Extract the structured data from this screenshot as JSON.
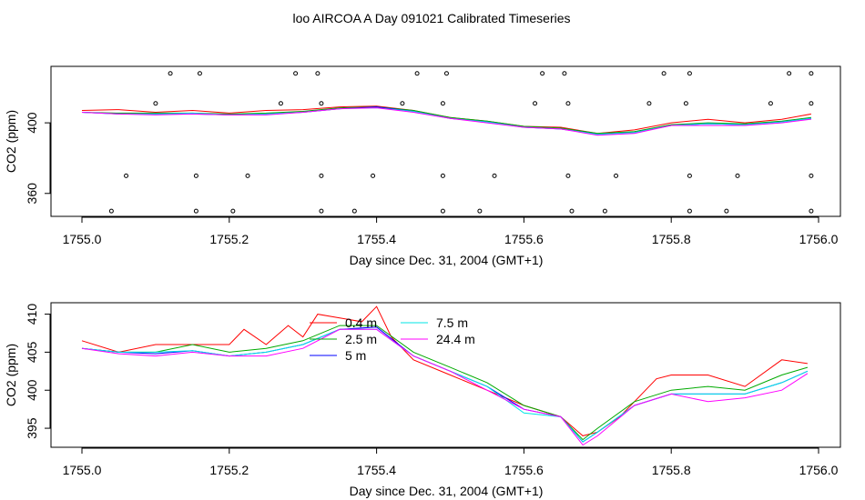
{
  "figure": {
    "title": "loo AIRCOA A  Day 091021  Calibrated Timeseries"
  },
  "chart_data": [
    {
      "type": "line",
      "xlabel": "Day since Dec. 31, 2004 (GMT+1)",
      "ylabel": "CO2 (ppm)",
      "xlim": [
        1755.0,
        1756.0
      ],
      "ylim": [
        347,
        432
      ],
      "x_ticks": [
        1755.0,
        1755.2,
        1755.4,
        1755.6,
        1755.8,
        1756.0
      ],
      "x_tick_labels": [
        "1755.0",
        "1755.2",
        "1755.4",
        "1755.6",
        "1755.8",
        "1756.0"
      ],
      "y_ticks": [
        360,
        400
      ],
      "y_tick_labels": [
        "360",
        "400"
      ],
      "grid": false,
      "legend": "none",
      "series": [
        {
          "color": "#ff0000",
          "x": [
            1755.0,
            1755.05,
            1755.1,
            1755.15,
            1755.2,
            1755.25,
            1755.3,
            1755.35,
            1755.4,
            1755.45,
            1755.5,
            1755.55,
            1755.6,
            1755.65,
            1755.7,
            1755.75,
            1755.8,
            1755.85,
            1755.9,
            1755.95,
            1755.99
          ],
          "y": [
            407,
            407.5,
            406,
            407,
            405.5,
            407,
            407.5,
            409,
            409.5,
            407,
            403,
            401,
            398,
            397.5,
            394,
            396,
            400,
            402,
            400,
            402,
            405
          ]
        },
        {
          "color": "#00aa00",
          "x": [
            1755.0,
            1755.05,
            1755.1,
            1755.15,
            1755.2,
            1755.25,
            1755.3,
            1755.35,
            1755.4,
            1755.45,
            1755.5,
            1755.55,
            1755.6,
            1755.65,
            1755.7,
            1755.75,
            1755.8,
            1755.85,
            1755.9,
            1755.95,
            1755.99
          ],
          "y": [
            406,
            405.5,
            405.5,
            405.5,
            405,
            405.5,
            406.5,
            408.5,
            409,
            407,
            403,
            401,
            398,
            397,
            394,
            395,
            399,
            400,
            399.5,
            401,
            403
          ]
        },
        {
          "color": "#0000ff",
          "x": [
            1755.0,
            1755.05,
            1755.1,
            1755.15,
            1755.2,
            1755.25,
            1755.3,
            1755.35,
            1755.4,
            1755.45,
            1755.5,
            1755.55,
            1755.6,
            1755.65,
            1755.7,
            1755.75,
            1755.8,
            1755.85,
            1755.9,
            1755.95,
            1755.99
          ],
          "y": [
            406,
            405,
            405,
            405,
            404.5,
            405,
            406,
            408,
            409,
            406.5,
            402.5,
            400.5,
            397.5,
            396.5,
            393.5,
            394.5,
            398.5,
            399.5,
            399,
            400.5,
            402.5
          ]
        },
        {
          "color": "#00e5e5",
          "x": [
            1755.0,
            1755.05,
            1755.1,
            1755.15,
            1755.2,
            1755.25,
            1755.3,
            1755.35,
            1755.4,
            1755.45,
            1755.5,
            1755.55,
            1755.6,
            1755.65,
            1755.7,
            1755.75,
            1755.8,
            1755.85,
            1755.9,
            1755.95,
            1755.99
          ],
          "y": [
            406,
            405,
            405,
            405.5,
            404.5,
            405,
            406,
            408,
            408.5,
            406.5,
            402.5,
            400.5,
            397.5,
            396.5,
            393.5,
            394.5,
            398.5,
            399.5,
            399,
            400.5,
            402.5
          ]
        },
        {
          "color": "#ff00ff",
          "x": [
            1755.0,
            1755.05,
            1755.1,
            1755.15,
            1755.2,
            1755.25,
            1755.3,
            1755.35,
            1755.4,
            1755.45,
            1755.5,
            1755.55,
            1755.6,
            1755.65,
            1755.7,
            1755.75,
            1755.8,
            1755.85,
            1755.9,
            1755.95,
            1755.99
          ],
          "y": [
            406,
            405,
            404.5,
            405,
            404.5,
            404.5,
            406,
            408,
            408.5,
            406,
            402.5,
            400,
            397.5,
            396.5,
            393,
            394,
            398.5,
            398.5,
            398.5,
            400,
            402
          ]
        }
      ],
      "markers": [
        {
          "x": [
            1755.12,
            1755.16,
            1755.29,
            1755.32,
            1755.455,
            1755.495,
            1755.625,
            1755.655,
            1755.79,
            1755.825,
            1755.96,
            1755.99
          ],
          "y": 428
        },
        {
          "x": [
            1755.1,
            1755.27,
            1755.325,
            1755.435,
            1755.49,
            1755.615,
            1755.66,
            1755.77,
            1755.82,
            1755.935,
            1755.99
          ],
          "y": 411
        },
        {
          "x": [
            1755.06,
            1755.155,
            1755.225,
            1755.325,
            1755.395,
            1755.49,
            1755.56,
            1755.66,
            1755.725,
            1755.825,
            1755.89,
            1755.99
          ],
          "y": 370
        },
        {
          "x": [
            1755.04,
            1755.155,
            1755.205,
            1755.325,
            1755.37,
            1755.49,
            1755.54,
            1755.665,
            1755.71,
            1755.825,
            1755.875,
            1755.99
          ],
          "y": 350
        }
      ]
    },
    {
      "type": "line",
      "xlabel": "Day since Dec. 31, 2004 (GMT+1)",
      "ylabel": "CO2 (ppm)",
      "xlim": [
        1755.0,
        1756.0
      ],
      "ylim": [
        392.5,
        411.5
      ],
      "x_ticks": [
        1755.0,
        1755.2,
        1755.4,
        1755.6,
        1755.8,
        1756.0
      ],
      "x_tick_labels": [
        "1755.0",
        "1755.2",
        "1755.4",
        "1755.6",
        "1755.8",
        "1756.0"
      ],
      "y_ticks": [
        395,
        400,
        405,
        410
      ],
      "y_tick_labels": [
        "395",
        "400",
        "405",
        "410"
      ],
      "grid": false,
      "legend": "top-center",
      "series": [
        {
          "name": "0.4 m",
          "color": "#ff0000",
          "x": [
            1755.0,
            1755.05,
            1755.1,
            1755.15,
            1755.2,
            1755.22,
            1755.25,
            1755.28,
            1755.3,
            1755.32,
            1755.35,
            1755.38,
            1755.4,
            1755.42,
            1755.45,
            1755.5,
            1755.55,
            1755.6,
            1755.65,
            1755.68,
            1755.7,
            1755.73,
            1755.75,
            1755.78,
            1755.8,
            1755.85,
            1755.9,
            1755.95,
            1755.985
          ],
          "y": [
            406.5,
            405,
            406,
            406,
            406,
            408,
            406,
            408.5,
            407,
            410,
            409.5,
            409,
            411,
            407,
            404,
            402,
            400,
            398,
            396.5,
            394,
            394.5,
            396.5,
            398.5,
            401.5,
            402,
            402,
            400.5,
            404,
            403.5
          ]
        },
        {
          "name": "2.5 m",
          "color": "#00aa00",
          "x": [
            1755.0,
            1755.05,
            1755.1,
            1755.15,
            1755.2,
            1755.25,
            1755.3,
            1755.35,
            1755.4,
            1755.45,
            1755.5,
            1755.55,
            1755.6,
            1755.65,
            1755.68,
            1755.7,
            1755.75,
            1755.8,
            1755.85,
            1755.9,
            1755.95,
            1755.985
          ],
          "y": [
            405.5,
            405,
            405,
            406,
            405,
            405.5,
            406.5,
            408.5,
            408.5,
            405,
            403,
            401,
            398,
            396.5,
            393.5,
            395,
            398.5,
            400,
            400.5,
            400,
            402,
            403
          ]
        },
        {
          "name": "5 m",
          "color": "#0000ff",
          "x": [
            1755.0,
            1755.05,
            1755.1,
            1755.15,
            1755.2,
            1755.25,
            1755.3,
            1755.35,
            1755.4,
            1755.45,
            1755.5,
            1755.55,
            1755.6,
            1755.65,
            1755.68,
            1755.7,
            1755.75,
            1755.8,
            1755.85,
            1755.9,
            1755.95,
            1755.985
          ],
          "y": [
            405.5,
            405,
            404.8,
            405.2,
            404.5,
            405,
            406,
            408,
            408.3,
            404.5,
            402.5,
            400.5,
            397.5,
            396.5,
            393.2,
            394.5,
            398,
            399.5,
            399.5,
            399.5,
            401,
            402.5
          ]
        },
        {
          "name": "7.5 m",
          "color": "#00e5e5",
          "x": [
            1755.0,
            1755.05,
            1755.1,
            1755.15,
            1755.2,
            1755.25,
            1755.3,
            1755.35,
            1755.4,
            1755.45,
            1755.5,
            1755.55,
            1755.6,
            1755.65,
            1755.68,
            1755.7,
            1755.75,
            1755.8,
            1755.85,
            1755.9,
            1755.95,
            1755.985
          ],
          "y": [
            405.5,
            405,
            405,
            405.2,
            404.5,
            405,
            406,
            408,
            408,
            404.5,
            402.5,
            400.5,
            397,
            396.5,
            393.2,
            394.5,
            398,
            399.5,
            399.5,
            399.5,
            401,
            402.5
          ]
        },
        {
          "name": "24.4 m",
          "color": "#ff00ff",
          "x": [
            1755.0,
            1755.05,
            1755.1,
            1755.15,
            1755.2,
            1755.25,
            1755.3,
            1755.35,
            1755.4,
            1755.45,
            1755.5,
            1755.55,
            1755.6,
            1755.65,
            1755.68,
            1755.7,
            1755.75,
            1755.8,
            1755.85,
            1755.9,
            1755.95,
            1755.985
          ],
          "y": [
            405.5,
            404.8,
            404.5,
            405,
            404.5,
            404.5,
            405.5,
            408,
            408,
            404.5,
            402.5,
            400,
            397.5,
            396.5,
            392.8,
            394,
            398,
            399.5,
            398.5,
            399,
            400,
            402.2
          ]
        }
      ]
    }
  ]
}
